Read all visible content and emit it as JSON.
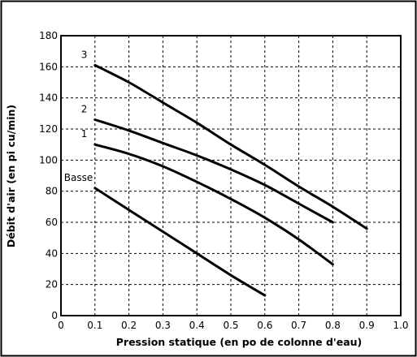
{
  "chart_data": {
    "type": "line",
    "title": "",
    "xlabel": "Pression statique (en po de colonne d'eau)",
    "ylabel": "Débit d'air (en pi cu/min)",
    "xlim": [
      0,
      1.0
    ],
    "ylim": [
      0,
      180
    ],
    "x_ticks": [
      "0",
      "0.1",
      "0.2",
      "0.3",
      "0.4",
      "0.5",
      "0.6",
      "0.7",
      "0.8",
      "0.9",
      "1.0"
    ],
    "y_ticks": [
      "0",
      "20",
      "40",
      "60",
      "80",
      "100",
      "120",
      "140",
      "160",
      "180"
    ],
    "grid": "dashed",
    "series": [
      {
        "name": "3",
        "x": [
          0.1,
          0.2,
          0.3,
          0.4,
          0.5,
          0.6,
          0.7,
          0.8,
          0.9
        ],
        "y": [
          161,
          150,
          137,
          124,
          110,
          97,
          83,
          70,
          56
        ]
      },
      {
        "name": "2",
        "x": [
          0.1,
          0.2,
          0.3,
          0.4,
          0.5,
          0.6,
          0.7,
          0.8
        ],
        "y": [
          126,
          119,
          111,
          103,
          94,
          84,
          72,
          60
        ]
      },
      {
        "name": "1",
        "x": [
          0.1,
          0.2,
          0.3,
          0.4,
          0.5,
          0.6,
          0.7,
          0.8
        ],
        "y": [
          110,
          104,
          96,
          86,
          75,
          63,
          49,
          33
        ]
      },
      {
        "name": "Basse",
        "x": [
          0.1,
          0.2,
          0.3,
          0.4,
          0.5,
          0.6
        ],
        "y": [
          82,
          68,
          54,
          40,
          26,
          13
        ]
      }
    ]
  }
}
